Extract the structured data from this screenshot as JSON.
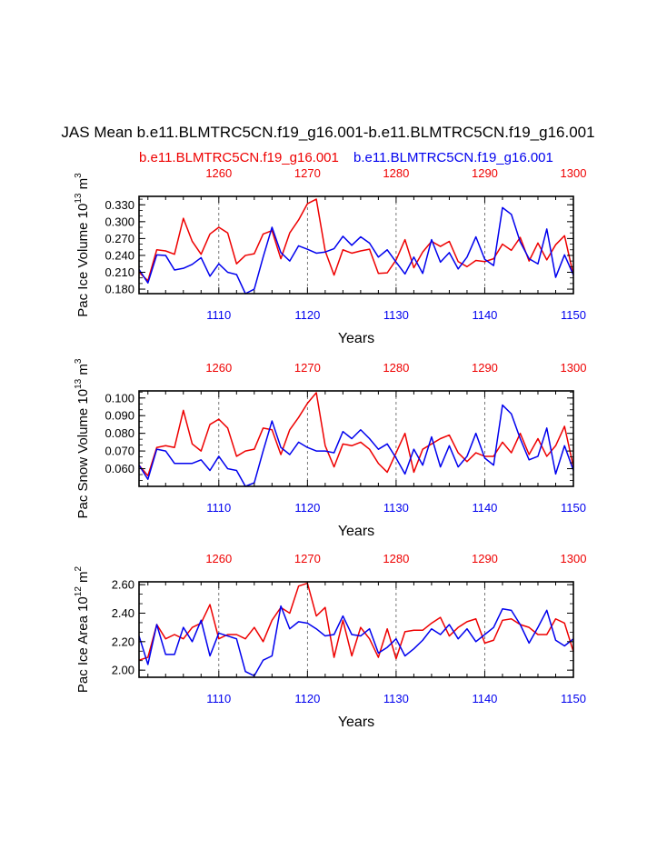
{
  "header": {
    "title": "JAS Mean b.e11.BLMTRC5CN.f19_g16.001-b.e11.BLMTRC5CN.f19_g16.001",
    "legend_red": "b.e11.BLMTRC5CN.f19_g16.001",
    "legend_blue": "b.e11.BLMTRC5CN.f19_g16.001"
  },
  "colors": {
    "red": "#ee0000",
    "blue": "#0000ee",
    "axis": "#000000",
    "grid": "#555555"
  },
  "chart_data": [
    {
      "type": "line",
      "name": "ice-volume",
      "ylabel_main": "Pac Ice Volume 10",
      "ylabel_exp": "13",
      "ylabel_unit": " m",
      "ylabel_unit_exp": "3",
      "xlabel": "Years",
      "xlim": [
        1101,
        1150
      ],
      "ylim": [
        0.172,
        0.345
      ],
      "yticks": [
        0.18,
        0.21,
        0.24,
        0.27,
        0.3,
        0.33
      ],
      "ytick_labels": [
        "0.180",
        "0.210",
        "0.240",
        "0.270",
        "0.300",
        "0.330"
      ],
      "bottom_ticks": [
        1110,
        1120,
        1130,
        1140,
        1150
      ],
      "bottom_tick_labels": [
        "1110",
        "1120",
        "1130",
        "1140",
        "1150"
      ],
      "top_tick_labels": [
        "1260",
        "1270",
        "1280",
        "1290",
        "1300"
      ],
      "grid_x": [
        1110,
        1120,
        1130,
        1140
      ],
      "series": [
        {
          "name": "red",
          "color": "#ee0000",
          "x_start": 1101,
          "values": [
            0.21,
            0.195,
            0.25,
            0.248,
            0.242,
            0.306,
            0.265,
            0.242,
            0.278,
            0.29,
            0.28,
            0.225,
            0.24,
            0.243,
            0.278,
            0.284,
            0.234,
            0.28,
            0.303,
            0.332,
            0.34,
            0.248,
            0.205,
            0.25,
            0.244,
            0.248,
            0.251,
            0.208,
            0.209,
            0.232,
            0.268,
            0.218,
            0.246,
            0.265,
            0.256,
            0.265,
            0.229,
            0.22,
            0.231,
            0.229,
            0.234,
            0.26,
            0.249,
            0.272,
            0.23,
            0.262,
            0.232,
            0.259,
            0.275,
            0.205
          ]
        },
        {
          "name": "blue",
          "color": "#0000ee",
          "x_start": 1101,
          "values": [
            0.215,
            0.191,
            0.241,
            0.24,
            0.214,
            0.217,
            0.224,
            0.236,
            0.203,
            0.225,
            0.21,
            0.206,
            0.172,
            0.18,
            0.237,
            0.29,
            0.245,
            0.23,
            0.257,
            0.251,
            0.244,
            0.246,
            0.252,
            0.274,
            0.258,
            0.273,
            0.262,
            0.237,
            0.25,
            0.228,
            0.207,
            0.237,
            0.208,
            0.268,
            0.228,
            0.245,
            0.216,
            0.237,
            0.273,
            0.233,
            0.222,
            0.325,
            0.313,
            0.264,
            0.234,
            0.225,
            0.287,
            0.201,
            0.241,
            0.205
          ]
        }
      ]
    },
    {
      "type": "line",
      "name": "snow-volume",
      "ylabel_main": "Pac Snow Volume 10",
      "ylabel_exp": "13",
      "ylabel_unit": " m",
      "ylabel_unit_exp": "3",
      "xlabel": "Years",
      "xlim": [
        1101,
        1150
      ],
      "ylim": [
        0.05,
        0.104
      ],
      "yticks": [
        0.06,
        0.07,
        0.08,
        0.09,
        0.1
      ],
      "ytick_labels": [
        "0.060",
        "0.070",
        "0.080",
        "0.090",
        "0.100"
      ],
      "bottom_ticks": [
        1110,
        1120,
        1130,
        1140,
        1150
      ],
      "bottom_tick_labels": [
        "1110",
        "1120",
        "1130",
        "1140",
        "1150"
      ],
      "top_tick_labels": [
        "1260",
        "1270",
        "1280",
        "1290",
        "1300"
      ],
      "grid_x": [
        1110,
        1120,
        1130,
        1140
      ],
      "series": [
        {
          "name": "red",
          "color": "#ee0000",
          "x_start": 1101,
          "values": [
            0.062,
            0.056,
            0.072,
            0.073,
            0.072,
            0.093,
            0.074,
            0.07,
            0.085,
            0.088,
            0.083,
            0.067,
            0.07,
            0.071,
            0.083,
            0.082,
            0.068,
            0.082,
            0.089,
            0.097,
            0.103,
            0.073,
            0.061,
            0.074,
            0.073,
            0.075,
            0.071,
            0.063,
            0.058,
            0.069,
            0.08,
            0.058,
            0.071,
            0.074,
            0.077,
            0.079,
            0.069,
            0.064,
            0.069,
            0.067,
            0.067,
            0.075,
            0.069,
            0.08,
            0.068,
            0.077,
            0.067,
            0.073,
            0.084,
            0.061
          ]
        },
        {
          "name": "blue",
          "color": "#0000ee",
          "x_start": 1101,
          "values": [
            0.062,
            0.054,
            0.071,
            0.07,
            0.063,
            0.063,
            0.063,
            0.065,
            0.059,
            0.067,
            0.06,
            0.059,
            0.05,
            0.052,
            0.07,
            0.087,
            0.072,
            0.068,
            0.075,
            0.072,
            0.07,
            0.07,
            0.069,
            0.081,
            0.077,
            0.082,
            0.077,
            0.071,
            0.074,
            0.066,
            0.057,
            0.071,
            0.062,
            0.078,
            0.061,
            0.073,
            0.061,
            0.067,
            0.08,
            0.066,
            0.062,
            0.096,
            0.091,
            0.077,
            0.065,
            0.067,
            0.083,
            0.057,
            0.073,
            0.059
          ]
        }
      ]
    },
    {
      "type": "line",
      "name": "ice-area",
      "ylabel_main": "Pac Ice Area 10",
      "ylabel_exp": "12",
      "ylabel_unit": " m",
      "ylabel_unit_exp": "2",
      "xlabel": "Years",
      "xlim": [
        1101,
        1150
      ],
      "ylim": [
        1.95,
        2.62
      ],
      "yticks": [
        2.0,
        2.2,
        2.4,
        2.6
      ],
      "ytick_labels": [
        "2.00",
        "2.20",
        "2.40",
        "2.60"
      ],
      "bottom_ticks": [
        1110,
        1120,
        1130,
        1140,
        1150
      ],
      "bottom_tick_labels": [
        "1110",
        "1120",
        "1130",
        "1140",
        "1150"
      ],
      "top_tick_labels": [
        "1260",
        "1270",
        "1280",
        "1290",
        "1300"
      ],
      "grid_x": [
        1110,
        1120,
        1130,
        1140
      ],
      "series": [
        {
          "name": "red",
          "color": "#ee0000",
          "x_start": 1101,
          "values": [
            2.07,
            2.09,
            2.32,
            2.22,
            2.25,
            2.22,
            2.3,
            2.33,
            2.46,
            2.22,
            2.25,
            2.25,
            2.22,
            2.3,
            2.2,
            2.35,
            2.44,
            2.4,
            2.59,
            2.61,
            2.38,
            2.44,
            2.09,
            2.35,
            2.1,
            2.3,
            2.22,
            2.09,
            2.29,
            2.08,
            2.27,
            2.28,
            2.28,
            2.33,
            2.37,
            2.24,
            2.3,
            2.34,
            2.36,
            2.19,
            2.21,
            2.35,
            2.36,
            2.32,
            2.3,
            2.25,
            2.25,
            2.36,
            2.33,
            2.13
          ]
        },
        {
          "name": "blue",
          "color": "#0000ee",
          "x_start": 1101,
          "values": [
            2.24,
            2.04,
            2.32,
            2.11,
            2.11,
            2.3,
            2.2,
            2.35,
            2.1,
            2.26,
            2.24,
            2.22,
            1.99,
            1.96,
            2.07,
            2.1,
            2.45,
            2.29,
            2.34,
            2.33,
            2.29,
            2.24,
            2.25,
            2.38,
            2.25,
            2.24,
            2.29,
            2.12,
            2.16,
            2.22,
            2.1,
            2.15,
            2.21,
            2.29,
            2.25,
            2.32,
            2.22,
            2.29,
            2.2,
            2.25,
            2.3,
            2.43,
            2.42,
            2.32,
            2.19,
            2.3,
            2.42,
            2.21,
            2.17,
            2.22
          ]
        }
      ]
    }
  ]
}
